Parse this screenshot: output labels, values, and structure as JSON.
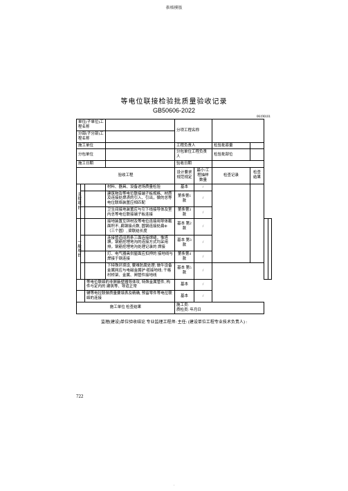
{
  "topmark": "表格模板",
  "title": "等电位联接检验批质量验收记录",
  "code": "GB50606-2022",
  "serial": "06190101",
  "hdr": {
    "unitProj": "单位(子单位)工程名称",
    "subProj": "分部(子分部)工程名称",
    "subItem": "分项工程名称",
    "construct": "施工单位",
    "pm": "工程负责人",
    "batchCap": "检验批容量",
    "subcontract": "分包单位",
    "subPm": "分包单位工程负责人",
    "batchLoc": "检验批部位",
    "date": "施工日期",
    "dateVal": "",
    "checkDate": "验收日期"
  },
  "th": {
    "item": "验收工程",
    "req": "设计要求 规范规定",
    "min": "最小/工程抽样数量",
    "rec": "检查记录",
    "res": "检查结果"
  },
  "side": {
    "main": "主控项目",
    "gen": "一般项目"
  },
  "rows": [
    {
      "txt": "材料、器具、设备进场质量检验",
      "a": "基本",
      "b": "/",
      "rs": 6
    },
    {
      "txt": "建筑物及等电位联接端子板规格、材质及连接处焊渍的引入、引出，做的总等电位联络装置应相匹配",
      "a": "第条第1款",
      "b": "/"
    },
    {
      "txt": "卫生间接地装置应与引下线接导体及室内总等电位联接端子板连接",
      "a": "第条第3款",
      "b": "/"
    },
    {
      "txt": "接地装置互锌材及等电位连接用导体截面积不, 扁钢接点数, 圆钢连接处扁Φ（三个圆）, 梁联结长度",
      "a": "基本 第2款",
      "b": "/",
      "rs": 4
    },
    {
      "txt": "连接管道间两条三面连接焊缝，惟塔塀，钢筋挖埋地沟的连接方式均采用排，钢筋挖埋地沟处理记录的 焊接",
      "a": "基本 第3款",
      "b": "/"
    },
    {
      "txt": "灯、电气器具供屋面应扣押的 接地线与焊接于钢连接",
      "a": "第条第4款",
      "b": "/"
    },
    {
      "txt": "下特殊环境设, 要难防腐处理; 做牛设备金属网应与电磁金属护 缆接地线; 干格村桥架、金属、闸管件接地线",
      "a": "基本 第5款",
      "b": "/"
    },
    {
      "txt": "等电位联络的非屏蔽壁器导体攻, 特殊金属管件, 构件与定内的 建筑等、导道正常",
      "a": "基本",
      "b": "/"
    },
    {
      "txt": "辅等电拉联做质量要填表及精确, 预留零件等电位联络的连接",
      "a": "基本",
      "b": "/"
    }
  ],
  "resultRow": "施工单位 检查结果",
  "resultVal": "施工员:\n质检员:     年月日",
  "supervise": "监理(建设)单位验收结论 专业监理工程师:      主任:  (建设单位工程专业技术负责人) :",
  "pageNum": "722",
  "btm": "."
}
